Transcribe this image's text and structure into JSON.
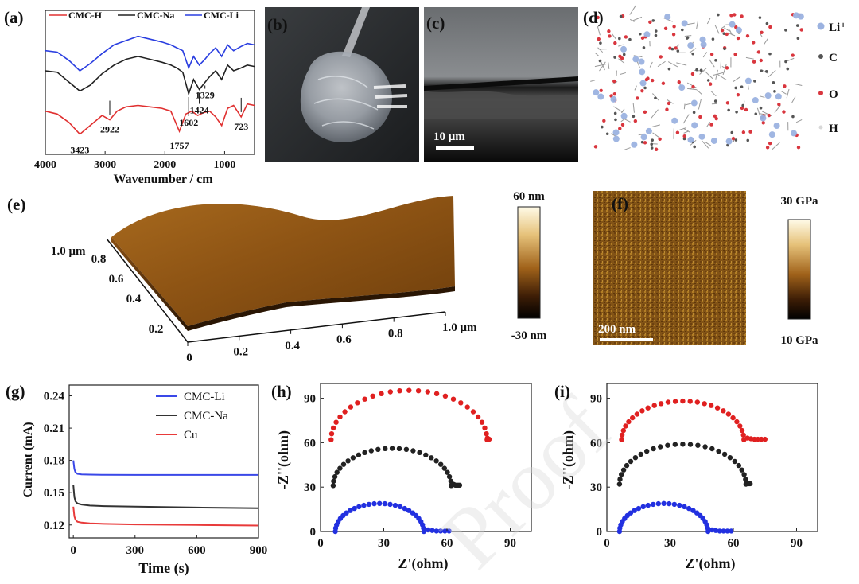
{
  "panel_labels": {
    "a": "(a)",
    "b": "(b)",
    "c": "(c)",
    "d": "(d)",
    "e": "(e)",
    "f": "(f)",
    "g": "(g)",
    "h": "(h)",
    "i": "(i)"
  },
  "panel_c": {
    "scalebar": "10 μm"
  },
  "panel_d": {
    "legend": [
      "Li⁺",
      "C",
      "O",
      "H"
    ],
    "colors": {
      "Li": "#9bb2e0",
      "C": "#555555",
      "O": "#d9363e",
      "H": "#d8d8d8"
    }
  },
  "panel_e": {
    "colorbar_max": "60 nm",
    "colorbar_min": "-30 nm",
    "y_ticks": [
      "0.2",
      "0.4",
      "0.6",
      "0.8",
      "1.0 μm"
    ],
    "x_ticks": [
      "0",
      "0.2",
      "0.4",
      "0.6",
      "0.8",
      "1.0 μm"
    ]
  },
  "panel_f": {
    "scalebar": "200 nm",
    "colorbar_max": "30 GPa",
    "colorbar_min": "10 GPa"
  },
  "watermark": "Proof",
  "chart_data": [
    {
      "panel": "a",
      "type": "line",
      "xlabel": "Wavenumber / cm",
      "xlim": [
        4000,
        500
      ],
      "x_ticks": [
        4000,
        3000,
        2000,
        1000
      ],
      "legend": [
        {
          "name": "CMC-H",
          "color": "#e03030"
        },
        {
          "name": "CMC-Na",
          "color": "#222222"
        },
        {
          "name": "CMC-Li",
          "color": "#2a3ee0"
        }
      ],
      "annotations": [
        {
          "text": "3423",
          "x": 3423
        },
        {
          "text": "2922",
          "x": 2922
        },
        {
          "text": "1757",
          "x": 1757
        },
        {
          "text": "723",
          "x": 723
        },
        {
          "text": "1602",
          "x": 1602
        },
        {
          "text": "1424",
          "x": 1424
        },
        {
          "text": "1329",
          "x": 1329
        }
      ],
      "series": [
        {
          "name": "CMC-Li",
          "color": "#2a3ee0",
          "x": [
            4000,
            3800,
            3600,
            3423,
            3250,
            3050,
            2850,
            2650,
            2450,
            2250,
            2050,
            1900,
            1800,
            1700,
            1602,
            1520,
            1424,
            1329,
            1250,
            1150,
            1050,
            950,
            850,
            723,
            620,
            500
          ],
          "y": [
            0.72,
            0.71,
            0.65,
            0.58,
            0.63,
            0.7,
            0.76,
            0.79,
            0.82,
            0.8,
            0.78,
            0.76,
            0.74,
            0.72,
            0.6,
            0.68,
            0.62,
            0.66,
            0.7,
            0.74,
            0.68,
            0.76,
            0.72,
            0.75,
            0.77,
            0.76
          ]
        },
        {
          "name": "CMC-Na",
          "color": "#222222",
          "x": [
            4000,
            3800,
            3600,
            3423,
            3250,
            3050,
            2850,
            2650,
            2450,
            2250,
            2050,
            1900,
            1800,
            1700,
            1602,
            1520,
            1424,
            1329,
            1250,
            1150,
            1050,
            950,
            850,
            723,
            620,
            500
          ],
          "y": [
            0.58,
            0.57,
            0.5,
            0.44,
            0.48,
            0.56,
            0.62,
            0.66,
            0.68,
            0.66,
            0.64,
            0.62,
            0.6,
            0.57,
            0.42,
            0.52,
            0.45,
            0.5,
            0.54,
            0.58,
            0.52,
            0.62,
            0.58,
            0.6,
            0.62,
            0.61
          ]
        },
        {
          "name": "CMC-H",
          "color": "#e03030",
          "x": [
            4000,
            3800,
            3600,
            3423,
            3250,
            3050,
            2922,
            2800,
            2650,
            2450,
            2250,
            2050,
            1900,
            1757,
            1650,
            1550,
            1450,
            1350,
            1250,
            1150,
            1050,
            950,
            850,
            723,
            620,
            500
          ],
          "y": [
            0.3,
            0.28,
            0.22,
            0.14,
            0.2,
            0.27,
            0.24,
            0.3,
            0.33,
            0.34,
            0.33,
            0.32,
            0.3,
            0.16,
            0.28,
            0.3,
            0.27,
            0.29,
            0.3,
            0.26,
            0.2,
            0.32,
            0.34,
            0.26,
            0.35,
            0.34
          ]
        }
      ]
    },
    {
      "panel": "g",
      "type": "line",
      "xlabel": "Time (s)",
      "ylabel": "Current (mA)",
      "xlim": [
        -20,
        900
      ],
      "ylim": [
        0.108,
        0.25
      ],
      "x_ticks": [
        0,
        300,
        600,
        900
      ],
      "y_ticks": [
        0.12,
        0.15,
        0.18,
        0.21,
        0.24
      ],
      "legend": [
        {
          "name": "CMC-Li",
          "color": "#3a48e8"
        },
        {
          "name": "CMC-Na",
          "color": "#333333"
        },
        {
          "name": "Cu",
          "color": "#e83a3a"
        }
      ],
      "series": [
        {
          "name": "CMC-Li",
          "color": "#3a48e8",
          "x": [
            0,
            5,
            10,
            20,
            40,
            80,
            150,
            300,
            600,
            900
          ],
          "y": [
            0.18,
            0.172,
            0.169,
            0.1675,
            0.167,
            0.1668,
            0.1666,
            0.1665,
            0.1665,
            0.1665
          ]
        },
        {
          "name": "CMC-Na",
          "color": "#333333",
          "x": [
            0,
            5,
            10,
            20,
            40,
            80,
            150,
            300,
            600,
            900
          ],
          "y": [
            0.157,
            0.146,
            0.142,
            0.14,
            0.139,
            0.138,
            0.1375,
            0.137,
            0.1362,
            0.1355
          ]
        },
        {
          "name": "Cu",
          "color": "#e83a3a",
          "x": [
            0,
            5,
            10,
            20,
            40,
            80,
            150,
            300,
            600,
            900
          ],
          "y": [
            0.137,
            0.128,
            0.125,
            0.123,
            0.1222,
            0.1215,
            0.121,
            0.1205,
            0.12,
            0.1195
          ]
        }
      ]
    },
    {
      "panel": "h",
      "type": "scatter",
      "xlabel": "Z'(ohm)",
      "ylabel": "-Z''(ohm)",
      "xlim": [
        0,
        100
      ],
      "ylim": [
        0,
        100
      ],
      "x_ticks": [
        0,
        30,
        60,
        90
      ],
      "y_ticks": [
        0,
        30,
        60,
        90
      ],
      "series": [
        {
          "name": "",
          "color": "#e02020",
          "center": 42,
          "radius": 37,
          "offset": 62,
          "tail_end": 80
        },
        {
          "name": "",
          "color": "#222222",
          "center": 34,
          "radius": 28,
          "offset": 31,
          "tail_end": 66
        },
        {
          "name": "",
          "color": "#2230e0",
          "center": 28,
          "radius": 21,
          "offset": 0,
          "tail_end": 61
        }
      ]
    },
    {
      "panel": "i",
      "type": "scatter",
      "xlabel": "Z'(ohm)",
      "ylabel": "-Z''(ohm)",
      "xlim": [
        0,
        100
      ],
      "ylim": [
        0,
        100
      ],
      "x_ticks": [
        0,
        30,
        60,
        90
      ],
      "y_ticks": [
        0,
        30,
        60,
        90
      ],
      "series": [
        {
          "name": "",
          "color": "#e02020",
          "center": 36,
          "radius": 29,
          "offset": 62,
          "tail_end": 75
        },
        {
          "name": "",
          "color": "#222222",
          "center": 36,
          "radius": 30,
          "offset": 32,
          "tail_end": 68
        },
        {
          "name": "",
          "color": "#2230e0",
          "center": 27,
          "radius": 21,
          "offset": 0,
          "tail_end": 59
        }
      ]
    }
  ]
}
